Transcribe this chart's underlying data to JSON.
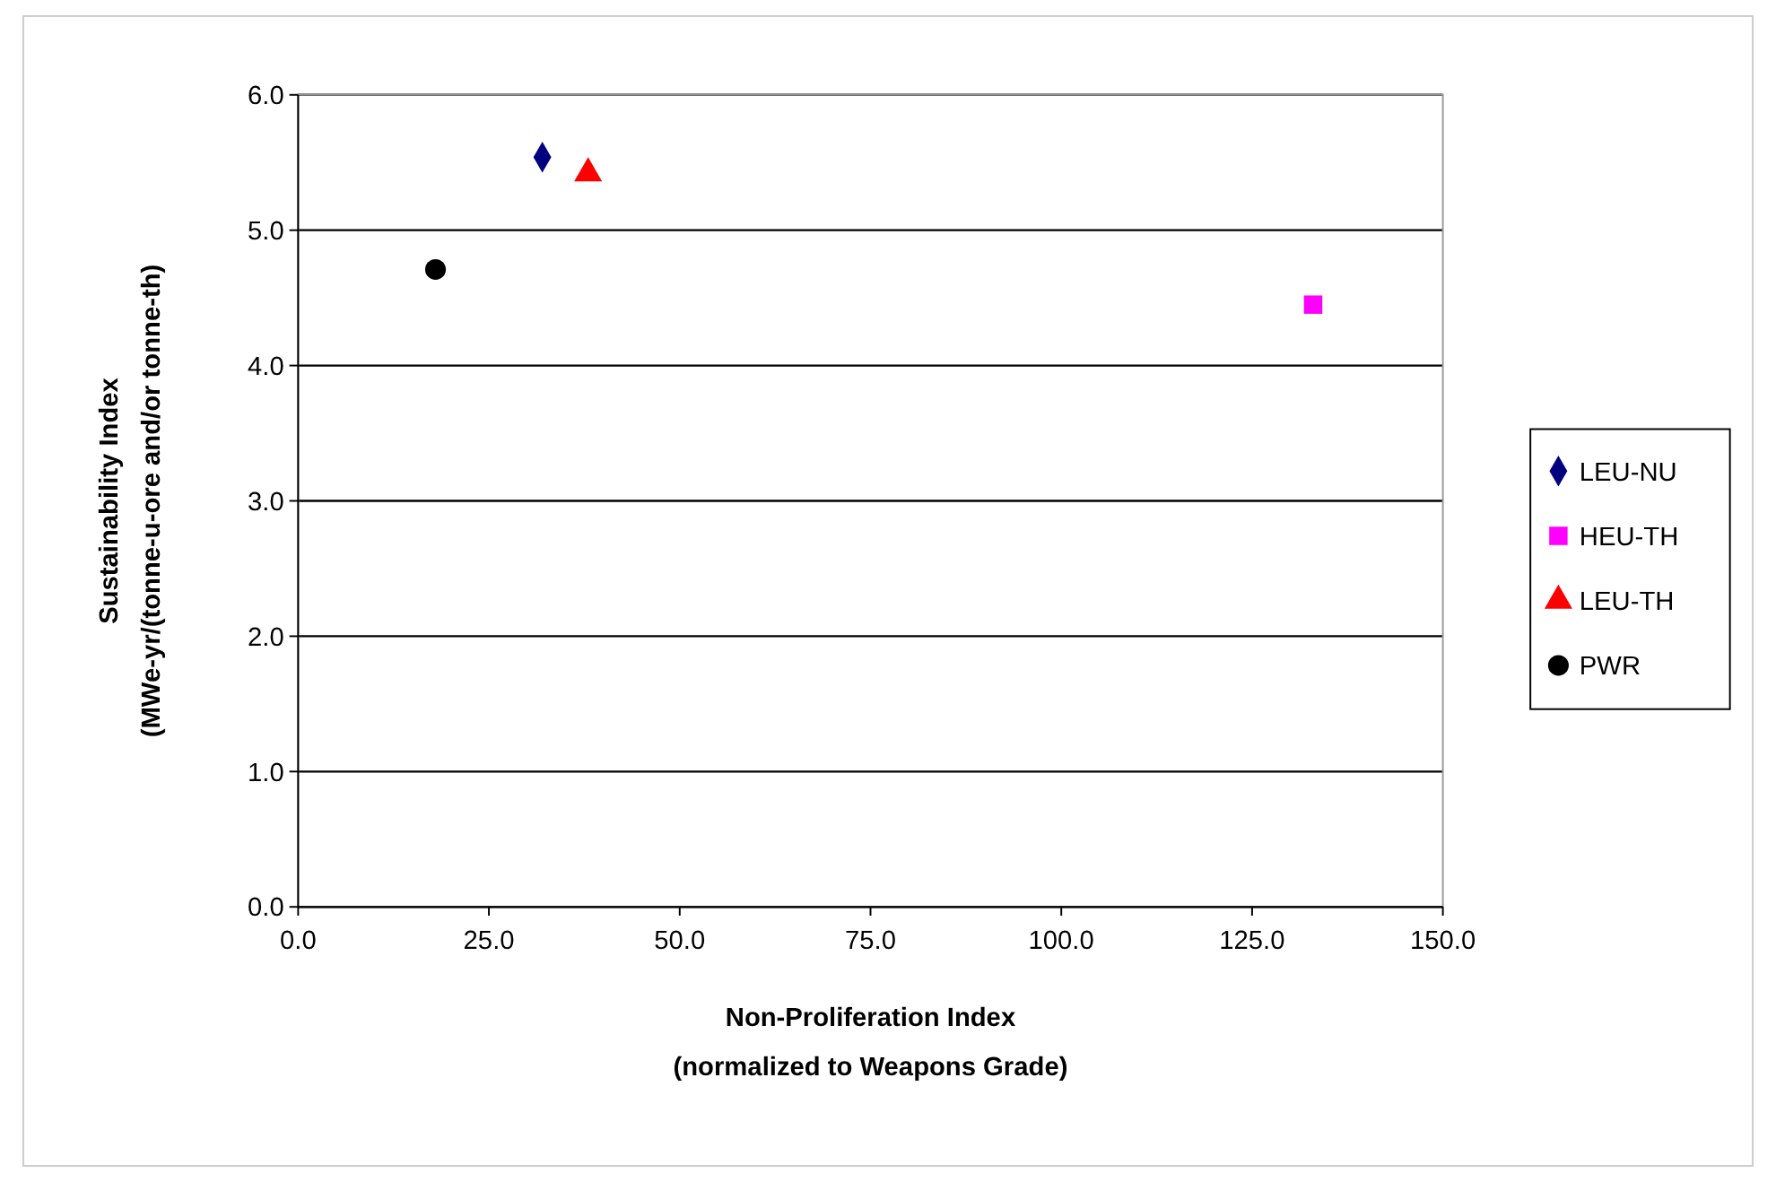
{
  "chart_data": {
    "type": "scatter",
    "xlabel": "Non-Proliferation Index\n(normalized to Weapons Grade)",
    "ylabel": "Sustainability Index\n(MWe-yr/(tonne-u-ore and/or tonne-th)",
    "xlim": [
      0,
      150
    ],
    "xticks": [
      {
        "value": 0,
        "label": "0.0"
      },
      {
        "value": 25,
        "label": "25.0"
      },
      {
        "value": 50,
        "label": "50.0"
      },
      {
        "value": 75,
        "label": "75.0"
      },
      {
        "value": 100,
        "label": "100.0"
      },
      {
        "value": 125,
        "label": "125.0"
      },
      {
        "value": 150,
        "label": "150.0"
      }
    ],
    "ylim": [
      0,
      6
    ],
    "yticks": [
      {
        "value": 0,
        "label": "0.0"
      },
      {
        "value": 1,
        "label": "1.0"
      },
      {
        "value": 2,
        "label": "2.0"
      },
      {
        "value": 3,
        "label": "3.0"
      },
      {
        "value": 4,
        "label": "4.0"
      },
      {
        "value": 5,
        "label": "5.0"
      },
      {
        "value": 6,
        "label": "6.0"
      }
    ],
    "grid": "y",
    "legend": "right",
    "series": [
      {
        "name": "LEU-NU",
        "color": "#000080",
        "marker": "diamond",
        "x": [
          32
        ],
        "values": [
          5.54
        ]
      },
      {
        "name": "HEU-TH",
        "color": "#ff00ff",
        "marker": "square",
        "x": [
          133
        ],
        "values": [
          4.45
        ]
      },
      {
        "name": "LEU-TH",
        "color": "#ff0000",
        "marker": "triangle",
        "x": [
          38
        ],
        "values": [
          5.42
        ]
      },
      {
        "name": "PWR",
        "color": "#000000",
        "marker": "circle",
        "x": [
          18
        ],
        "values": [
          4.71
        ]
      }
    ]
  }
}
